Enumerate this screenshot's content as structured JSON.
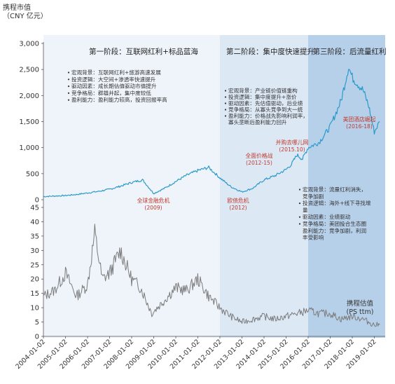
{
  "chart_data": [
    {
      "type": "line",
      "ylabel": "携程市值",
      "yunit": "（CNY 亿元）",
      "ylim": [
        0,
        3000
      ],
      "yticks": [
        "0",
        "500",
        "1,000",
        "1,500",
        "2,000",
        "2,500",
        "3,000"
      ],
      "x_dates": [
        "2004-01-02",
        "2004-07-01",
        "2005-01-01",
        "2005-07-01",
        "2006-01-01",
        "2006-07-01",
        "2007-01-01",
        "2007-07-01",
        "2008-01-01",
        "2008-07-01",
        "2009-01-01",
        "2009-07-01",
        "2010-01-01",
        "2010-07-01",
        "2011-01-01",
        "2011-07-01",
        "2012-01-01",
        "2012-07-01",
        "2013-01-01",
        "2013-07-01",
        "2014-01-01",
        "2014-07-01",
        "2015-01-01",
        "2015-04-01",
        "2015-07-01",
        "2015-10-01",
        "2016-01-01",
        "2016-07-01",
        "2017-01-01",
        "2017-07-01",
        "2017-11-01",
        "2018-01-01",
        "2018-07-01",
        "2018-10-01",
        "2019-01-01",
        "2019-04-01"
      ],
      "values": [
        60,
        70,
        80,
        100,
        130,
        160,
        200,
        260,
        330,
        380,
        120,
        220,
        350,
        470,
        560,
        620,
        420,
        250,
        150,
        220,
        380,
        460,
        580,
        680,
        860,
        780,
        1000,
        1100,
        1400,
        1900,
        2550,
        2350,
        2100,
        1800,
        1300,
        1500
      ],
      "series_color": "#2b9ac9",
      "phases": [
        {
          "title": "第一阶段：互联网红利+标品蓝海",
          "start": "2004-01-02",
          "end": "2012-01-02",
          "color": "#eef4fa"
        },
        {
          "title": "第二阶段：集中度快速提升",
          "start": "2012-01-02",
          "end": "2016-01-02",
          "color": "#dde8f5"
        },
        {
          "title": "第三阶段：后流量红利",
          "start": "2016-01-02",
          "end": "2019-07-01",
          "color": "#b7d0ea"
        }
      ],
      "phase_notes": [
        [
          "宏观背景：互联网红利+旅游高速发展",
          "投资逻辑：大空间+渗透率快速提升",
          "驱动因素：成长期估值驱动市值提升",
          "竞争格局：群雄并起，集中度较低",
          "盈利能力：盈利能力较高，投资回报率高"
        ],
        [
          "宏观背景：产业链价值链重构",
          "投资逻辑：集中度提升+涨价",
          "驱动因素：先估值驱动，后业绩",
          "竞争格局：从寡头竞争到大一统",
          "盈利能力：价格战先影响利润率，",
          "寡头垄断后盈利能力回升"
        ],
        [
          "宏观背景：流量红利消失，",
          "竞争加剧",
          "投资逻辑：海外+线下寻找增",
          "量",
          "驱动因素：业绩驱动",
          "竞争格局：美团投合生态圈",
          "盈利能力：竞争加剧，利润",
          "率受影响"
        ]
      ],
      "events": [
        {
          "label": "全球金融危机",
          "date_label": "(2009)"
        },
        {
          "label": "欧债危机",
          "date_label": "(2012)"
        },
        {
          "label": "全面价格战",
          "date_label": "(2012-15)"
        },
        {
          "label": "并购去哪儿网",
          "date_label": "(2015.10)"
        },
        {
          "label": "美团酒店崛起",
          "date_label": "(2016-18)"
        }
      ]
    },
    {
      "type": "line",
      "series_label": "携程估值",
      "series_unit": "(PS ttm)",
      "ylim": [
        0,
        45
      ],
      "yticks": [
        "0",
        "5",
        "10",
        "15",
        "20",
        "25",
        "30",
        "35",
        "40",
        "45"
      ],
      "x_dates": [
        "2004-01-02",
        "2004-07-01",
        "2005-01-01",
        "2005-07-01",
        "2006-01-01",
        "2006-05-01",
        "2006-09-01",
        "2007-01-01",
        "2007-07-01",
        "2008-01-01",
        "2008-06-01",
        "2008-12-01",
        "2009-06-01",
        "2010-01-01",
        "2010-07-01",
        "2011-01-01",
        "2011-07-01",
        "2012-01-01",
        "2012-07-01",
        "2013-01-01",
        "2013-07-01",
        "2014-01-01",
        "2014-07-01",
        "2015-01-01",
        "2015-07-01",
        "2016-01-01",
        "2016-07-01",
        "2017-01-01",
        "2017-07-01",
        "2018-01-01",
        "2018-07-01",
        "2019-01-01",
        "2019-04-01"
      ],
      "values": [
        14,
        16,
        22,
        14,
        18,
        36,
        20,
        22,
        30,
        20,
        17,
        8,
        12,
        17,
        16,
        20,
        14,
        10,
        7,
        5,
        6,
        7,
        6,
        7,
        8,
        9,
        8,
        8,
        6,
        7,
        6,
        4,
        4
      ],
      "series_color": "#7b7b7b"
    }
  ],
  "x_axis_labels": [
    "2004-01-02",
    "2005-01-02",
    "2006-01-02",
    "2007-01-02",
    "2008-01-02",
    "2009-01-02",
    "2010-01-02",
    "2011-01-02",
    "2012-01-02",
    "2013-01-02",
    "2014-01-02",
    "2015-01-02",
    "2016-01-02",
    "2017-01-02",
    "2018-01-02",
    "2019-01-02"
  ]
}
